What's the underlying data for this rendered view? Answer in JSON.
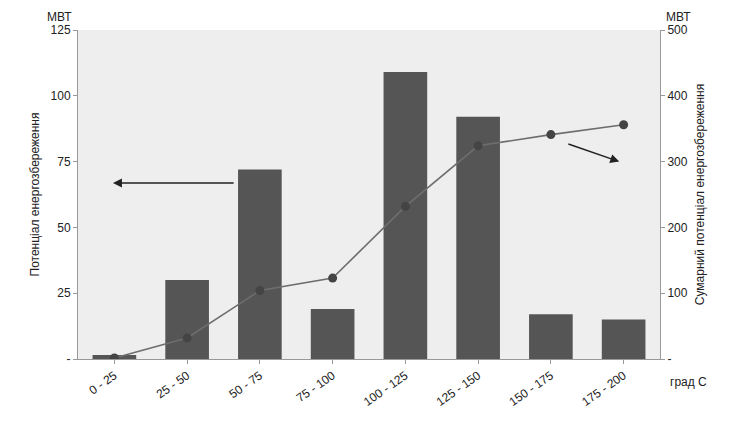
{
  "chart_data": {
    "type": "bar",
    "categories": [
      "0 - 25",
      "25 - 50",
      "50 - 75",
      "75 - 100",
      "100 - 125",
      "125 - 150",
      "150 - 175",
      "175 - 200"
    ],
    "series": [
      {
        "type": "bar",
        "color": "#555555",
        "values": [
          1.5,
          30,
          72,
          19,
          109,
          92,
          17,
          15
        ]
      },
      {
        "type": "line",
        "axis": "y2",
        "color": "#6e6e6e",
        "marker": "circle",
        "line_style": "solid",
        "values": [
          1.5,
          32,
          104,
          123,
          232,
          324,
          341,
          356
        ]
      }
    ],
    "x_label": "град С",
    "y_label": "Потенціал енергозбереження",
    "y2_label": "Сумарний потенціал енергозбереження",
    "annotations": [
      {
        "text": "МВТ",
        "position": "left"
      },
      {
        "text": "МВТ",
        "position": "right"
      }
    ],
    "ylim": [
      0,
      125
    ],
    "yticks": [
      {
        "value": 0,
        "label": "-"
      },
      25,
      50,
      75,
      100,
      125
    ],
    "y2lim": [
      0,
      500
    ],
    "y2ticks": [
      {
        "value": 0,
        "label": "-"
      },
      100,
      200,
      300,
      400,
      500
    ],
    "grid": false
  }
}
